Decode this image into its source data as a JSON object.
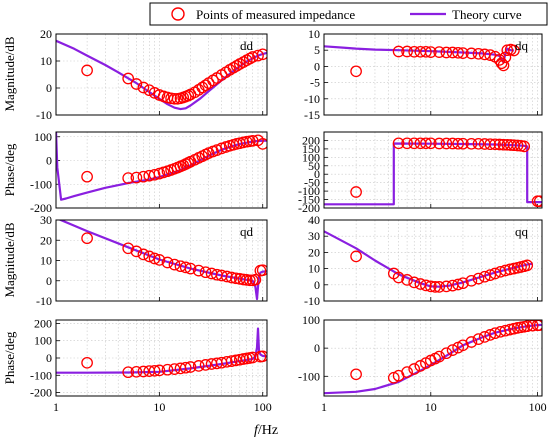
{
  "legend": {
    "marker_label": "Points of measured impedance",
    "line_label": "Theory curve",
    "marker_color": "#ff0000",
    "line_color": "#8a1fe0"
  },
  "xlabel_italic": "f",
  "xlabel_rest": "/Hz",
  "chart_data": [
    {
      "panel": "dd-magnitude",
      "type": "line",
      "label": "dd",
      "ylabel": "Magnitude/dB",
      "xscale": "log",
      "xlim": [
        1,
        110
      ],
      "ylim": [
        -10,
        20
      ],
      "yticks": [
        -10,
        0,
        10,
        20
      ],
      "xticks": [
        1,
        10,
        100
      ],
      "xticklabels": [],
      "grid": true,
      "series": [
        {
          "name": "Points of measured impedance",
          "style": "markers",
          "x": [
            2,
            5,
            6,
            7,
            8,
            9,
            10,
            11,
            12,
            13,
            14,
            15,
            16,
            17,
            18,
            19,
            20,
            22,
            24,
            26,
            28,
            30,
            33,
            36,
            40,
            44,
            48,
            52,
            56,
            60,
            65,
            70,
            75,
            80,
            90,
            100
          ],
          "y": [
            6.5,
            3.5,
            1.5,
            0.2,
            -0.8,
            -1.8,
            -2.6,
            -3.1,
            -3.5,
            -3.8,
            -4.0,
            -4.0,
            -3.8,
            -3.5,
            -3.2,
            -2.8,
            -2.4,
            -1.6,
            -0.7,
            0.2,
            1.0,
            1.8,
            2.8,
            3.7,
            4.8,
            5.8,
            6.7,
            7.5,
            8.2,
            8.9,
            9.6,
            10.3,
            10.9,
            11.5,
            12.0,
            12.5
          ]
        },
        {
          "name": "Theory curve",
          "style": "line",
          "x": [
            1,
            1.5,
            2,
            3,
            4,
            5,
            6,
            8,
            10,
            12,
            14,
            16,
            18,
            20,
            25,
            30,
            40,
            50,
            60,
            70,
            80,
            90,
            100,
            110
          ],
          "y": [
            17.5,
            14.5,
            12.0,
            8.5,
            5.8,
            3.6,
            1.8,
            -1.5,
            -4.0,
            -6.0,
            -7.3,
            -7.8,
            -7.5,
            -6.5,
            -3.8,
            -1.2,
            2.8,
            5.8,
            8.0,
            9.8,
            11.0,
            12.0,
            12.6,
            13.0
          ]
        }
      ]
    },
    {
      "panel": "dq-magnitude",
      "type": "line",
      "label": "dq",
      "ylabel": "",
      "xscale": "log",
      "xlim": [
        1,
        110
      ],
      "ylim": [
        -15,
        10
      ],
      "yticks": [
        -15,
        -10,
        -5,
        0,
        5,
        10
      ],
      "xticks": [
        1,
        10,
        100
      ],
      "xticklabels": [],
      "grid": true,
      "series": [
        {
          "name": "Points of measured impedance",
          "style": "markers",
          "x": [
            2,
            5,
            6,
            7,
            8,
            9,
            10,
            12,
            14,
            16,
            18,
            20,
            24,
            28,
            32,
            36,
            40,
            44,
            46,
            48,
            50,
            52,
            56,
            60
          ],
          "y": [
            -1.5,
            4.6,
            4.6,
            4.5,
            4.5,
            4.5,
            4.4,
            4.4,
            4.3,
            4.3,
            4.2,
            4.1,
            4.0,
            3.9,
            3.7,
            3.5,
            3.0,
            2.0,
            1.0,
            0.3,
            2.8,
            5.0,
            5.2,
            4.9
          ]
        },
        {
          "name": "Theory curve",
          "style": "line",
          "x": [
            1,
            1.5,
            2,
            3,
            5,
            10,
            20,
            30,
            40,
            44,
            46,
            48,
            50,
            52,
            54,
            56,
            60
          ],
          "y": [
            6.2,
            5.8,
            5.5,
            5.2,
            5.0,
            4.7,
            4.3,
            4.0,
            3.6,
            3.2,
            2.4,
            1.2,
            4.0,
            5.5,
            5.2,
            5.0,
            4.9
          ]
        }
      ]
    },
    {
      "panel": "dd-phase",
      "type": "line",
      "label": "",
      "ylabel": "Phase/deg",
      "xscale": "log",
      "xlim": [
        1,
        110
      ],
      "ylim": [
        -200,
        120
      ],
      "yticks": [
        -200,
        -100,
        0,
        100
      ],
      "xticks": [
        1,
        10,
        100
      ],
      "xticklabels": [],
      "grid": true,
      "series": [
        {
          "name": "Points of measured impedance",
          "style": "markers",
          "x": [
            2,
            5,
            6,
            7,
            8,
            9,
            10,
            11,
            12,
            13,
            14,
            15,
            16,
            17,
            18,
            19,
            20,
            22,
            24,
            26,
            28,
            30,
            33,
            36,
            40,
            44,
            48,
            52,
            56,
            60,
            65,
            70,
            75,
            80,
            90,
            100
          ],
          "y": [
            -68,
            -74,
            -72,
            -68,
            -64,
            -60,
            -55,
            -50,
            -45,
            -40,
            -35,
            -30,
            -25,
            -20,
            -15,
            -10,
            -5,
            3,
            11,
            18,
            25,
            31,
            38,
            44,
            51,
            57,
            62,
            66,
            70,
            73,
            76,
            79,
            81,
            83,
            85,
            70
          ]
        },
        {
          "name": "Theory curve",
          "style": "line",
          "x": [
            1,
            1.03,
            1.12,
            1.25,
            1.5,
            2,
            3,
            5,
            8,
            10,
            15,
            20,
            30,
            40,
            50,
            60,
            70,
            80,
            90,
            100,
            110
          ],
          "y": [
            125,
            -30,
            -165,
            -160,
            -150,
            -135,
            -115,
            -95,
            -80,
            -70,
            -45,
            -20,
            20,
            45,
            60,
            70,
            75,
            80,
            82,
            83,
            84
          ]
        }
      ]
    },
    {
      "panel": "dq-phase",
      "type": "line",
      "label": "",
      "ylabel": "",
      "xscale": "log",
      "xlim": [
        1,
        110
      ],
      "ylim": [
        -200,
        250
      ],
      "yticks": [
        -200,
        -150,
        -100,
        -50,
        0,
        50,
        100,
        150,
        200
      ],
      "xticks": [
        1,
        10,
        100
      ],
      "xticklabels": [],
      "grid": true,
      "series": [
        {
          "name": "Points of measured impedance",
          "style": "markers",
          "x": [
            2,
            5,
            6,
            7,
            8,
            9,
            10,
            12,
            14,
            16,
            18,
            20,
            24,
            28,
            32,
            36,
            40,
            44,
            48,
            52,
            56,
            60,
            65,
            70,
            75,
            100,
            105
          ],
          "y": [
            -105,
            183,
            183,
            183,
            183,
            183,
            183,
            182,
            182,
            182,
            181,
            181,
            180,
            180,
            179,
            178,
            177,
            176,
            175,
            174,
            173,
            172,
            170,
            168,
            165,
            -160,
            -160
          ]
        },
        {
          "name": "Theory curve",
          "style": "line",
          "x": [
            1,
            2,
            3,
            4.5,
            4.5,
            10,
            20,
            40,
            60,
            75,
            80,
            80,
            90,
            110
          ],
          "y": [
            -178,
            -178,
            -178,
            -178,
            182,
            181,
            179,
            176,
            172,
            168,
            165,
            -165,
            -165,
            -165
          ]
        }
      ]
    },
    {
      "panel": "qd-magnitude",
      "type": "line",
      "label": "qd",
      "ylabel": "Magnitude/dB",
      "xscale": "log",
      "xlim": [
        1,
        110
      ],
      "ylim": [
        -10,
        30
      ],
      "yticks": [
        -10,
        0,
        10,
        20,
        30
      ],
      "xticks": [
        1,
        10,
        100
      ],
      "xticklabels": [],
      "grid": true,
      "series": [
        {
          "name": "Points of measured impedance",
          "style": "markers",
          "x": [
            2,
            5,
            6,
            7,
            8,
            9,
            10,
            12,
            14,
            16,
            18,
            20,
            24,
            28,
            32,
            36,
            40,
            45,
            50,
            55,
            60,
            65,
            70,
            75,
            80,
            85,
            95,
            100
          ],
          "y": [
            21.0,
            16.0,
            14.5,
            13.0,
            12.0,
            11.0,
            10.3,
            9.0,
            8.0,
            7.2,
            6.6,
            6.0,
            5.0,
            4.2,
            3.6,
            3.0,
            2.6,
            2.1,
            1.6,
            1.2,
            0.9,
            0.6,
            0.4,
            0.2,
            0.2,
            0.5,
            5.0,
            5.2
          ]
        },
        {
          "name": "Theory curve",
          "style": "line",
          "x": [
            1,
            2,
            5,
            10,
            20,
            40,
            60,
            80,
            85,
            88,
            90,
            92,
            95,
            100,
            110
          ],
          "y": [
            31.0,
            24.5,
            16.5,
            10.5,
            6.0,
            2.6,
            1.0,
            0.0,
            -3.0,
            -9.0,
            -3.0,
            2.0,
            4.0,
            4.5,
            4.6
          ]
        }
      ]
    },
    {
      "panel": "qq-magnitude",
      "type": "line",
      "label": "qq",
      "ylabel": "",
      "xscale": "log",
      "xlim": [
        1,
        110
      ],
      "ylim": [
        -10,
        40
      ],
      "yticks": [
        -10,
        0,
        10,
        20,
        30,
        40
      ],
      "xticks": [
        1,
        10,
        100
      ],
      "xticklabels": [],
      "grid": true,
      "series": [
        {
          "name": "Points of measured impedance",
          "style": "markers",
          "x": [
            2,
            4.5,
            5,
            6,
            7,
            8,
            9,
            10,
            11,
            12,
            14,
            16,
            18,
            20,
            24,
            28,
            32,
            36,
            40,
            45,
            50,
            55,
            60,
            65,
            70,
            75,
            80
          ],
          "y": [
            17.5,
            7.0,
            4.5,
            3.0,
            1.5,
            0.5,
            -0.4,
            -1.0,
            -1.3,
            -1.3,
            -1.0,
            -0.5,
            0.2,
            1.0,
            2.5,
            3.8,
            5.0,
            6.0,
            7.0,
            8.0,
            8.8,
            9.5,
            10.0,
            10.5,
            11.0,
            11.5,
            12.0
          ]
        },
        {
          "name": "Theory curve",
          "style": "line",
          "x": [
            1,
            2,
            3,
            5,
            8,
            10,
            12,
            15,
            20,
            30,
            40,
            60,
            80,
            90
          ],
          "y": [
            33.0,
            22.5,
            15.0,
            6.5,
            1.0,
            -1.0,
            -1.2,
            -0.5,
            1.5,
            5.0,
            7.5,
            10.5,
            12.5,
            13.0
          ]
        }
      ]
    },
    {
      "panel": "qd-phase",
      "type": "line",
      "label": "",
      "ylabel": "Phase/deg",
      "xscale": "log",
      "xlim": [
        1,
        110
      ],
      "ylim": [
        -220,
        220
      ],
      "yticks": [
        -200,
        -100,
        0,
        100,
        200
      ],
      "xticks": [
        1,
        10,
        100
      ],
      "xticklabels": [
        "1",
        "10",
        "100"
      ],
      "grid": true,
      "series": [
        {
          "name": "Points of measured impedance",
          "style": "markers",
          "x": [
            2,
            5,
            6,
            7,
            8,
            9,
            10,
            12,
            14,
            16,
            18,
            20,
            24,
            28,
            32,
            36,
            40,
            45,
            50,
            55,
            60,
            65,
            70,
            75,
            80,
            95,
            100
          ],
          "y": [
            -28,
            -82,
            -80,
            -78,
            -76,
            -74,
            -72,
            -68,
            -64,
            -60,
            -56,
            -52,
            -46,
            -40,
            -35,
            -31,
            -27,
            -22,
            -18,
            -14,
            -10,
            -6,
            -3,
            0,
            3,
            8,
            10
          ]
        },
        {
          "name": "Theory curve",
          "style": "line",
          "x": [
            1,
            2,
            5,
            10,
            20,
            40,
            60,
            80,
            85,
            88,
            90,
            92,
            95,
            100,
            110
          ],
          "y": [
            -85,
            -85,
            -84,
            -80,
            -60,
            -35,
            -18,
            -5,
            10,
            60,
            170,
            40,
            20,
            12,
            10
          ]
        }
      ]
    },
    {
      "panel": "qq-phase",
      "type": "line",
      "label": "",
      "ylabel": "",
      "xscale": "log",
      "xlim": [
        1,
        110
      ],
      "ylim": [
        -170,
        100
      ],
      "yticks": [
        -100,
        0,
        100
      ],
      "xticks": [
        1,
        10,
        100
      ],
      "xticklabels": [
        "1",
        "10",
        "100"
      ],
      "grid": true,
      "series": [
        {
          "name": "Points of measured impedance",
          "style": "markers",
          "x": [
            2,
            4.5,
            5,
            6,
            7,
            8,
            9,
            10,
            11,
            12,
            14,
            16,
            18,
            20,
            24,
            28,
            32,
            36,
            40,
            45,
            50,
            55,
            60,
            65,
            70,
            75,
            80,
            90,
            100,
            105
          ],
          "y": [
            -93,
            -105,
            -98,
            -85,
            -74,
            -63,
            -53,
            -44,
            -37,
            -30,
            -18,
            -7,
            2,
            10,
            22,
            32,
            40,
            47,
            53,
            58,
            62,
            66,
            69,
            72,
            74,
            76,
            78,
            80,
            81,
            82
          ]
        },
        {
          "name": "Theory curve",
          "style": "line",
          "x": [
            1,
            2,
            3,
            5,
            8,
            10,
            15,
            20,
            30,
            40,
            60,
            80,
            100,
            110
          ],
          "y": [
            -160,
            -155,
            -145,
            -120,
            -80,
            -60,
            -20,
            10,
            38,
            55,
            70,
            78,
            82,
            83
          ]
        }
      ]
    }
  ]
}
